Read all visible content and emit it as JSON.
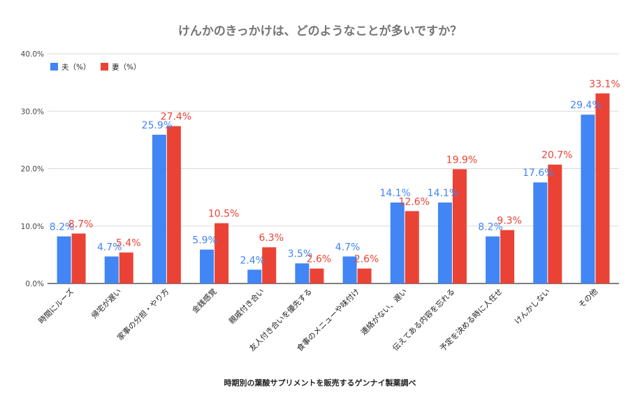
{
  "chart_data": {
    "type": "bar",
    "title": "けんかのきっかけは、どのようなことが多いですか？",
    "categories": [
      "時間にルーズ",
      "帰宅が遅い",
      "家事の分担・やり方",
      "金銭感覚",
      "親戚付き合い",
      "友人付き合いを優先する",
      "食事のメニューや味付け",
      "連絡がない、遅い",
      "伝えてある内容を忘れる",
      "予定を決める時に人任せ",
      "けんかしない",
      "その他"
    ],
    "series": [
      {
        "name": "夫（%）",
        "color": "#4285f4",
        "values": [
          8.2,
          4.7,
          25.9,
          5.9,
          2.4,
          3.5,
          4.7,
          14.1,
          14.1,
          8.2,
          17.6,
          29.4
        ]
      },
      {
        "name": "妻（%）",
        "color": "#ea4335",
        "values": [
          8.7,
          5.4,
          27.4,
          10.5,
          6.3,
          2.6,
          2.6,
          12.6,
          19.9,
          9.3,
          20.7,
          33.1
        ]
      }
    ],
    "ylim": [
      0,
      40
    ],
    "yticks": [
      "0.0%",
      "10.0%",
      "20.0%",
      "30.0%",
      "40.0%"
    ],
    "value_suffix": "%",
    "grid": true,
    "legend": "top-left",
    "footnote": "時期別の葉酸サプリメントを販売するゲンナイ製薬調べ"
  }
}
